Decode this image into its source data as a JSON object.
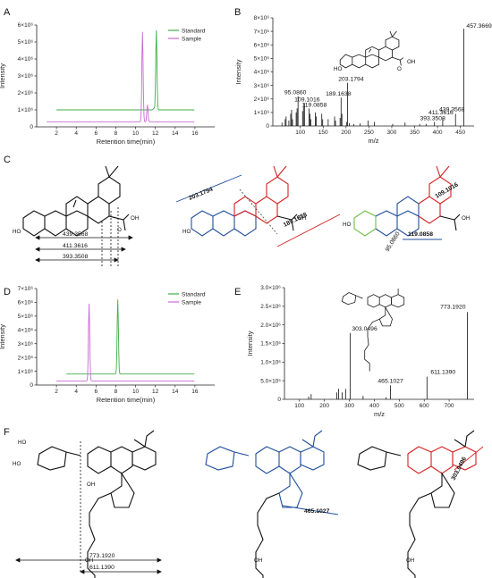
{
  "panels": {
    "A": {
      "letter": "A",
      "chart_data": {
        "type": "line",
        "xlabel": "Retention time(min)",
        "ylabel": "Intensity",
        "xlim": [
          0,
          18
        ],
        "ylim": [
          0,
          6000000
        ],
        "xticks": [
          "2",
          "4",
          "6",
          "8",
          "10",
          "12",
          "14",
          "16"
        ],
        "yticks": [
          "0",
          "1×10⁶",
          "2×10⁶",
          "3×10⁶",
          "4×10⁶",
          "5×10⁶",
          "6×10⁶"
        ],
        "series": [
          {
            "name": "Standard",
            "color": "#3fae49",
            "baseline": 1000000,
            "x_start": 2,
            "x_end": 16,
            "peaks": [
              {
                "x": 12.1,
                "y": 5700000
              },
              {
                "x": 11.85,
                "y": 1100000
              }
            ]
          },
          {
            "name": "Sample",
            "color": "#c76bd1",
            "baseline": 300000,
            "x_start": 1,
            "x_end": 16,
            "peaks": [
              {
                "x": 10.7,
                "y": 5600000
              },
              {
                "x": 11.2,
                "y": 1300000
              }
            ]
          }
        ],
        "legend": "top-right"
      }
    },
    "B": {
      "letter": "B",
      "chart_data": {
        "type": "bar",
        "xlabel": "m/z",
        "ylabel": "Intensity",
        "xlim": [
          40,
          480
        ],
        "ylim": [
          0,
          8000000
        ],
        "xticks": [
          "100",
          "150",
          "200",
          "250",
          "300",
          "350",
          "400",
          "450"
        ],
        "yticks": [
          "0",
          "1×10⁶",
          "2×10⁶",
          "3×10⁶",
          "4×10⁶",
          "5×10⁶",
          "6×10⁶",
          "7×10⁶",
          "8×10⁶"
        ],
        "peaks": [
          {
            "x": 95.086,
            "y": 2200000,
            "label": "95.0860"
          },
          {
            "x": 109.1016,
            "y": 1700000,
            "label": "109.1016"
          },
          {
            "x": 119.0858,
            "y": 1300000,
            "label": "119.0858"
          },
          {
            "x": 189.1638,
            "y": 2100000,
            "label": "189.1638"
          },
          {
            "x": 203.1794,
            "y": 3200000,
            "label": "203.1794"
          },
          {
            "x": 393.3508,
            "y": 300000,
            "label": "393.3508"
          },
          {
            "x": 411.3616,
            "y": 600000,
            "label": "411.3616"
          },
          {
            "x": 439.3568,
            "y": 900000,
            "label": "439.3568"
          },
          {
            "x": 457.3669,
            "y": 7200000,
            "label": "457.3669"
          },
          {
            "x": 60,
            "y": 250000
          },
          {
            "x": 67,
            "y": 500000
          },
          {
            "x": 69,
            "y": 700000
          },
          {
            "x": 75,
            "y": 400000
          },
          {
            "x": 79,
            "y": 900000
          },
          {
            "x": 81,
            "y": 1200000
          },
          {
            "x": 83,
            "y": 500000
          },
          {
            "x": 91,
            "y": 1000000
          },
          {
            "x": 93,
            "y": 1300000
          },
          {
            "x": 105,
            "y": 1100000
          },
          {
            "x": 107,
            "y": 1400000
          },
          {
            "x": 121,
            "y": 900000
          },
          {
            "x": 123,
            "y": 500000
          },
          {
            "x": 133,
            "y": 1000000
          },
          {
            "x": 135,
            "y": 700000
          },
          {
            "x": 147,
            "y": 900000
          },
          {
            "x": 149,
            "y": 500000
          },
          {
            "x": 161,
            "y": 500000
          },
          {
            "x": 175,
            "y": 700000
          },
          {
            "x": 177,
            "y": 400000
          },
          {
            "x": 187,
            "y": 600000
          },
          {
            "x": 191,
            "y": 900000
          },
          {
            "x": 201,
            "y": 300000
          },
          {
            "x": 207,
            "y": 200000
          },
          {
            "x": 217,
            "y": 150000
          },
          {
            "x": 231,
            "y": 200000
          },
          {
            "x": 248,
            "y": 400000
          },
          {
            "x": 262,
            "y": 300000
          },
          {
            "x": 302,
            "y": 150000
          },
          {
            "x": 329,
            "y": 250000
          },
          {
            "x": 361,
            "y": 150000
          },
          {
            "x": 375,
            "y": 150000
          }
        ]
      }
    },
    "C": {
      "letter": "C",
      "labels": {
        "ho": "HO",
        "oh": "OH",
        "o": "O",
        "h": "H"
      },
      "fragments": [
        {
          "value": "439.3568"
        },
        {
          "value": "411.3616"
        },
        {
          "value": "393.3508"
        },
        {
          "value": "203.1794",
          "color": "#1f4e9a"
        },
        {
          "value": "189.1638",
          "color": "#d62020"
        },
        {
          "value": "109.1016",
          "color": "#d62020"
        },
        {
          "value": "95.0860",
          "color": "#6fbf3f"
        },
        {
          "value": "119.0858",
          "color": "#1f4e9a"
        }
      ]
    },
    "D": {
      "letter": "D",
      "chart_data": {
        "type": "line",
        "xlabel": "Retention time(min)",
        "ylabel": "Intensity",
        "xlim": [
          0,
          18
        ],
        "ylim": [
          0,
          7000000
        ],
        "xticks": [
          "2",
          "4",
          "6",
          "8",
          "10",
          "12",
          "14",
          "16"
        ],
        "yticks": [
          "0",
          "1×10⁶",
          "2×10⁶",
          "3×10⁶",
          "4×10⁶",
          "5×10⁶",
          "6×10⁶",
          "7×10⁶"
        ],
        "series": [
          {
            "name": "Standard",
            "color": "#3fae49",
            "baseline": 800000,
            "x_start": 3,
            "x_end": 16,
            "peaks": [
              {
                "x": 8.2,
                "y": 6200000
              }
            ]
          },
          {
            "name": "Sample",
            "color": "#c76bd1",
            "baseline": 300000,
            "x_start": 2,
            "x_end": 16,
            "peaks": [
              {
                "x": 5.3,
                "y": 5900000
              }
            ]
          }
        ],
        "legend": "top-right"
      }
    },
    "E": {
      "letter": "E",
      "chart_data": {
        "type": "bar",
        "xlabel": "m/z",
        "ylabel": "Intensity",
        "xlim": [
          40,
          800
        ],
        "ylim": [
          0,
          3200000
        ],
        "xticks": [
          "100",
          "200",
          "300",
          "400",
          "500",
          "600",
          "700"
        ],
        "yticks": [
          "0",
          "5.0×10⁵",
          "1.0×10⁶",
          "1.5×10⁶",
          "2.0×10⁶",
          "2.5×10⁶",
          "3.0×10⁶"
        ],
        "peaks": [
          {
            "x": 303.0496,
            "y": 1900000,
            "label": "303.0496"
          },
          {
            "x": 465.1027,
            "y": 400000,
            "label": "465.1027"
          },
          {
            "x": 611.139,
            "y": 650000,
            "label": "611.1390"
          },
          {
            "x": 773.192,
            "y": 2500000,
            "label": "773.1920"
          },
          {
            "x": 137,
            "y": 80000
          },
          {
            "x": 147,
            "y": 150000
          },
          {
            "x": 250,
            "y": 200000
          },
          {
            "x": 257,
            "y": 300000
          },
          {
            "x": 271,
            "y": 200000
          },
          {
            "x": 285,
            "y": 300000
          },
          {
            "x": 355,
            "y": 100000
          },
          {
            "x": 447,
            "y": 60000
          }
        ]
      }
    },
    "F": {
      "letter": "F",
      "labels": {
        "ho": "HO",
        "oh": "OH",
        "o": "O"
      },
      "fragments": [
        {
          "value": "773.1920"
        },
        {
          "value": "611.1390"
        },
        {
          "value": "465.1027",
          "color": "#1f4e9a"
        },
        {
          "value": "303.0496",
          "color": "#d62020"
        }
      ]
    }
  }
}
